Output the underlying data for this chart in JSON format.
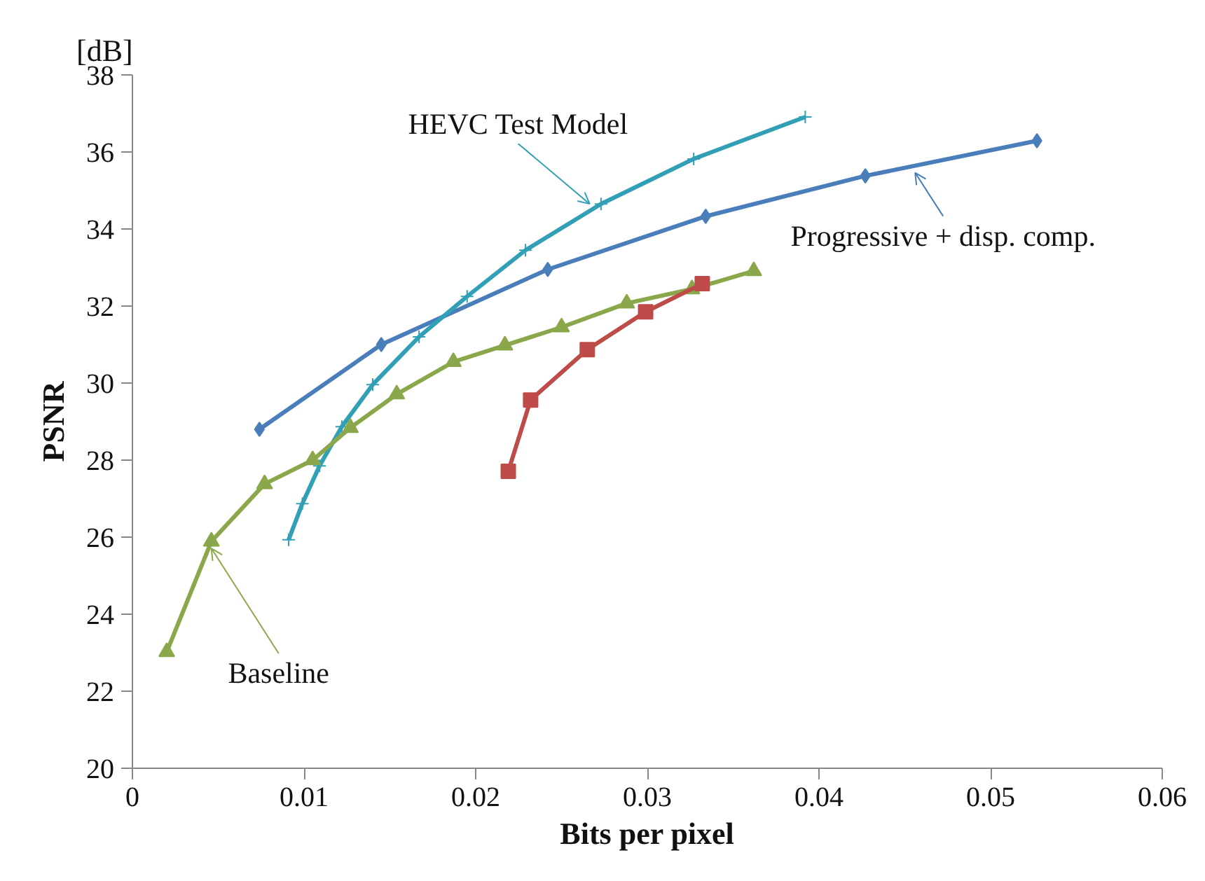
{
  "chart_data": {
    "type": "line",
    "xlabel": "Bits per pixel",
    "ylabel": "PSNR",
    "xlim": [
      0,
      0.06
    ],
    "xticks": [
      0,
      0.01,
      0.02,
      0.03,
      0.04,
      0.05,
      0.06
    ],
    "ylim": [
      20,
      38
    ],
    "yticks": [
      20,
      22,
      24,
      26,
      28,
      30,
      32,
      34,
      36,
      38
    ],
    "grid": false,
    "series": [
      {
        "name": "Progressive + disp. comp.",
        "color": "#4a7ebb",
        "marker": "diamond",
        "x": [
          0.0074,
          0.0145,
          0.0242,
          0.0334,
          0.0427,
          0.0527
        ],
        "values": [
          28.8,
          31.0,
          32.95,
          34.33,
          35.38,
          36.29
        ]
      },
      {
        "name": "HEVC Test Model",
        "color": "#31a0b6",
        "marker": "cross",
        "x": [
          0.0091,
          0.0099,
          0.0109,
          0.0122,
          0.014,
          0.0167,
          0.0195,
          0.0229,
          0.0273,
          0.0327,
          0.0392
        ],
        "values": [
          25.93,
          26.87,
          27.85,
          28.87,
          29.96,
          31.2,
          32.25,
          33.45,
          34.65,
          35.82,
          36.91
        ]
      },
      {
        "name": "Baseline",
        "color": "#8aa84b",
        "marker": "triangle",
        "x": [
          0.002,
          0.0046,
          0.0077,
          0.0105,
          0.0127,
          0.0154,
          0.0187,
          0.0217,
          0.025,
          0.0288,
          0.0326,
          0.0362
        ],
        "values": [
          23.02,
          25.89,
          27.38,
          28.0,
          28.84,
          29.71,
          30.55,
          30.98,
          31.45,
          32.07,
          32.44,
          32.91
        ]
      },
      {
        "color": "#be4b48",
        "marker": "square",
        "x": [
          0.0219,
          0.0232,
          0.0265,
          0.0299,
          0.0332
        ],
        "values": [
          27.71,
          29.56,
          30.87,
          31.85,
          32.58
        ]
      }
    ],
    "annotations": [
      "[dB]"
    ]
  }
}
